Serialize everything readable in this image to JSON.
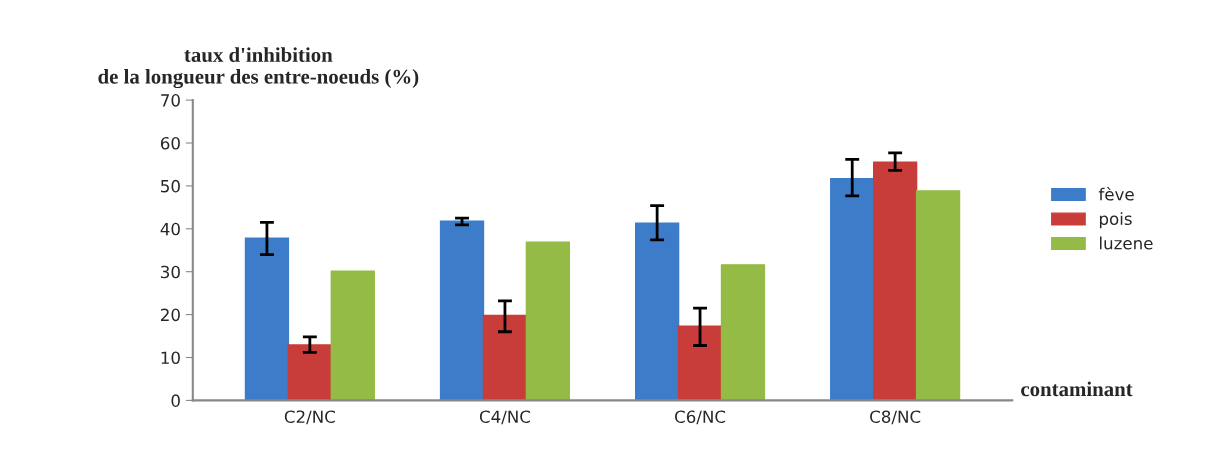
{
  "chart_data": {
    "type": "bar",
    "ylabel": "taux d'inhibition\nde la longueur des entre-noeuds (%)",
    "xlabel": "contaminant",
    "categories": [
      "C2/NC",
      "C4/NC",
      "C6/NC",
      "C8/NC"
    ],
    "series": [
      {
        "name": "fève",
        "color": "#3d7cc9",
        "values": [
          37.8,
          41.8,
          41.3,
          51.7
        ],
        "errors": [
          [
            34,
            41.5
          ],
          [
            40.9,
            42.5
          ],
          [
            37.4,
            45.4
          ],
          [
            47.7,
            56.2
          ]
        ]
      },
      {
        "name": "pois",
        "color": "#c83c3a",
        "values": [
          12.9,
          19.8,
          17.3,
          55.5
        ],
        "errors": [
          [
            11.2,
            14.8
          ],
          [
            16,
            23.2
          ],
          [
            12.8,
            21.5
          ],
          [
            53.6,
            57.7
          ]
        ]
      },
      {
        "name": "luzene",
        "color": "#93bb45",
        "values": [
          30.1,
          36.9,
          31.6,
          48.8
        ]
      }
    ],
    "ylim": [
      0,
      70
    ],
    "yticks": [
      0,
      10,
      20,
      30,
      40,
      50,
      60,
      70
    ],
    "grid": false,
    "legend": "right"
  }
}
